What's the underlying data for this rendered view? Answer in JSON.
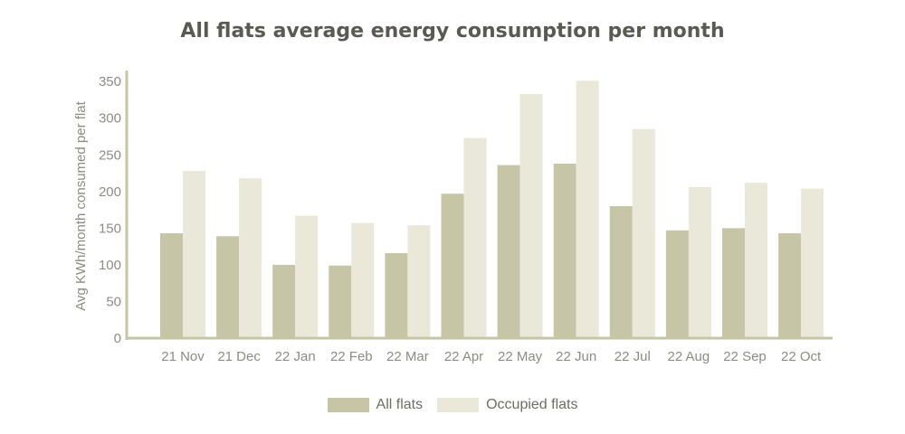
{
  "chart_data": {
    "type": "bar",
    "title": "All flats average energy consumption per month",
    "ylabel": "Avg KWh/month consumed per flat",
    "xlabel": "",
    "ylim": [
      0,
      365
    ],
    "yticks": [
      0,
      50,
      100,
      150,
      200,
      250,
      300,
      350
    ],
    "categories": [
      "21 Nov",
      "21 Dec",
      "22 Jan",
      "22 Feb",
      "22 Mar",
      "22 Apr",
      "22 May",
      "22 Jun",
      "22 Jul",
      "22 Aug",
      "22 Sep",
      "22 Oct"
    ],
    "series": [
      {
        "name": "All flats",
        "color": "#c6c6a6",
        "values": [
          143,
          139,
          100,
          99,
          116,
          197,
          236,
          238,
          180,
          147,
          150,
          143
        ]
      },
      {
        "name": "Occupied flats",
        "color": "#eae8d8",
        "values": [
          228,
          218,
          167,
          157,
          154,
          273,
          333,
          351,
          285,
          206,
          212,
          204
        ]
      }
    ],
    "legend_position": "bottom-center",
    "grid": false,
    "axis_color": "#c6c6a6"
  }
}
